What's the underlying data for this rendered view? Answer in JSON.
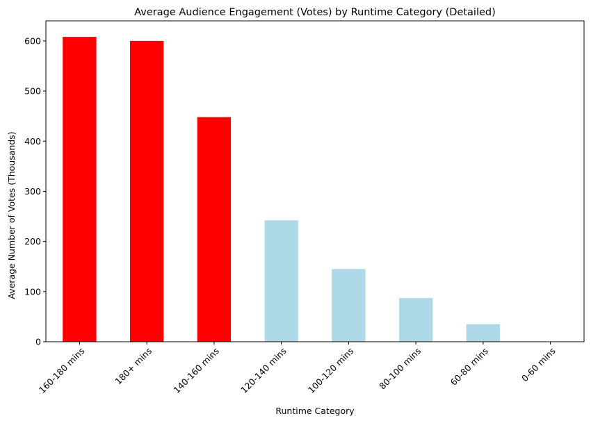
{
  "chart_data": {
    "type": "bar",
    "title": "Average Audience Engagement (Votes) by Runtime Category (Detailed)",
    "xlabel": "Runtime Category",
    "ylabel": "Average Number of Votes (Thousands)",
    "categories": [
      "160-180 mins",
      "180+ mins",
      "140-160 mins",
      "120-140 mins",
      "100-120 mins",
      "80-100 mins",
      "60-80 mins",
      "0-60 mins"
    ],
    "values": [
      608,
      600,
      448,
      242,
      145,
      87,
      35,
      0
    ],
    "bar_colors": [
      "#ff0000",
      "#ff0000",
      "#ff0000",
      "#add8e6",
      "#add8e6",
      "#add8e6",
      "#add8e6",
      "#add8e6"
    ],
    "ylim": [
      0,
      640
    ],
    "yticks": [
      0,
      100,
      200,
      300,
      400,
      500,
      600
    ],
    "grid": false,
    "legend": "none"
  }
}
